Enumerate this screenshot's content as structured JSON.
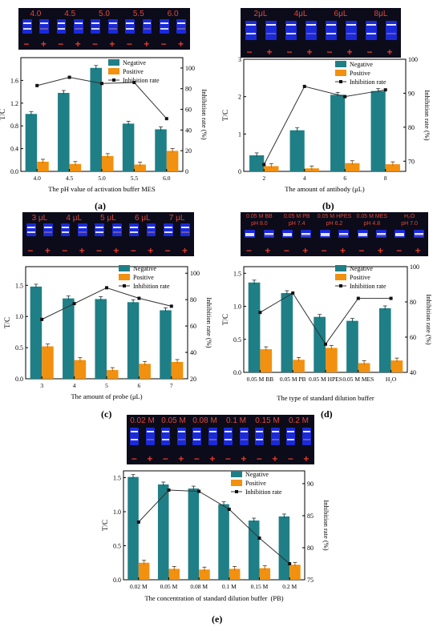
{
  "panels": [
    {
      "letter": "(a)",
      "strip_labels": [
        "4.0",
        "4.5",
        "5.0",
        "5.5",
        "6.0"
      ],
      "chart": {
        "type": "bar",
        "categories": [
          "4.0",
          "4.5",
          "5.0",
          "5.5",
          "6.0"
        ],
        "xlabel": "The pH value of activation buffer MES",
        "ylabel": "T/C",
        "ylabel2": "Inhibition rate (%)",
        "ylim": [
          0,
          2.0
        ],
        "yticks": [
          0.0,
          0.4,
          0.8,
          1.2,
          1.6
        ],
        "y2lim": [
          0,
          110
        ],
        "y2ticks": [
          0,
          20,
          40,
          60,
          80,
          100
        ],
        "series": [
          {
            "name": "Negative",
            "values": [
              1.01,
              1.38,
              1.82,
              0.84,
              0.74
            ],
            "color": "#1f7f86"
          },
          {
            "name": "Positive",
            "values": [
              0.17,
              0.13,
              0.27,
              0.12,
              0.36
            ],
            "color": "#f2900f"
          }
        ],
        "line": {
          "name": "Inhibition rate",
          "values": [
            83,
            91,
            85,
            86,
            51
          ]
        },
        "legend": "top-right"
      }
    },
    {
      "letter": "(b)",
      "strip_labels": [
        "2μL",
        "4μL",
        "6μL",
        "8μL"
      ],
      "chart": {
        "type": "bar",
        "categories": [
          "2",
          "4",
          "6",
          "8"
        ],
        "xlabel": "The amount of antibody (μL)",
        "ylabel": "T/C",
        "ylabel2": "Inhibition rate (%)",
        "ylim": [
          0,
          3.0
        ],
        "yticks": [
          0,
          1,
          2,
          3
        ],
        "y2lim": [
          67,
          100
        ],
        "y2ticks": [
          70,
          80,
          90,
          100
        ],
        "series": [
          {
            "name": "Negative",
            "values": [
              0.43,
              1.1,
              2.05,
              2.15
            ],
            "color": "#1f7f86"
          },
          {
            "name": "Positive",
            "values": [
              0.14,
              0.08,
              0.22,
              0.19
            ],
            "color": "#f2900f"
          }
        ],
        "line": {
          "name": "Inhibition rate",
          "values": [
            69,
            92,
            89,
            91
          ]
        },
        "legend": "top-right"
      }
    },
    {
      "letter": "(c)",
      "strip_labels": [
        "3 μL",
        "4 μL",
        "5 μL",
        "6 μL",
        "7 μL"
      ],
      "chart": {
        "type": "bar",
        "categories": [
          "3",
          "4",
          "5",
          "6",
          "7"
        ],
        "xlabel": "The amount of probe (μL)",
        "ylabel": "T/C",
        "ylabel2": "Inhibition rate (%)",
        "ylim": [
          0,
          1.8
        ],
        "yticks": [
          0.0,
          0.5,
          1.0,
          1.5
        ],
        "y2lim": [
          20,
          105
        ],
        "y2ticks": [
          20,
          40,
          60,
          80,
          100
        ],
        "series": [
          {
            "name": "Negative",
            "values": [
              1.48,
              1.29,
              1.28,
              1.23,
              1.1
            ],
            "color": "#1f7f86"
          },
          {
            "name": "Positive",
            "values": [
              0.52,
              0.3,
              0.14,
              0.24,
              0.27
            ],
            "color": "#f2900f"
          }
        ],
        "line": {
          "name": "Inhibition rate",
          "values": [
            65,
            77,
            89,
            81,
            75
          ]
        },
        "legend": "top-right"
      }
    },
    {
      "letter": "(d)",
      "strip_labels": [
        "0.05 M BB\npH 8.0",
        "0.05 M PB\npH 7.4",
        "0.05 M HPES\npH 6.2",
        "0.05 M MES\npH 4.8",
        "H₂O\npH 7.0"
      ],
      "chart": {
        "type": "bar",
        "categories": [
          "0.05 M BB",
          "0.05 M PB",
          "0.05 M HPES",
          "0.05 M MES",
          "H₂O"
        ],
        "xlabel": "The type of standard dilution buffer",
        "ylabel": "T/C",
        "ylabel2": "Inhibition rate (%)",
        "ylim": [
          0,
          1.6
        ],
        "yticks": [
          0.0,
          0.5,
          1.0,
          1.5
        ],
        "y2lim": [
          40,
          100
        ],
        "y2ticks": [
          40,
          60,
          80,
          100
        ],
        "series": [
          {
            "name": "Negative",
            "values": [
              1.36,
              1.2,
              0.84,
              0.78,
              0.97
            ],
            "color": "#1f7f86"
          },
          {
            "name": "Positive",
            "values": [
              0.35,
              0.19,
              0.37,
              0.14,
              0.18
            ],
            "color": "#f2900f"
          }
        ],
        "line": {
          "name": "Inhibition rate",
          "values": [
            74,
            85,
            56,
            82,
            82
          ]
        },
        "legend": "top-right"
      }
    },
    {
      "letter": "(e)",
      "strip_labels": [
        "0.02 M",
        "0.05 M",
        "0.08 M",
        "0.1 M",
        "0.15 M",
        "0.2 M"
      ],
      "chart": {
        "type": "bar",
        "categories": [
          "0.02 M",
          "0.05 M",
          "0.08 M",
          "0.1 M",
          "0.15 M",
          "0.2 M"
        ],
        "xlabel": "The concentration of standard dilution buffer",
        "xlabel_suffix": "(PB)",
        "ylabel": "T/C",
        "ylabel2": "Inhibition rate (%)",
        "ylim": [
          0,
          1.6
        ],
        "yticks": [
          0.0,
          0.5,
          1.0,
          1.5
        ],
        "y2lim": [
          75,
          92
        ],
        "y2ticks": [
          75,
          80,
          85,
          90
        ],
        "series": [
          {
            "name": "Negative",
            "values": [
              1.51,
              1.4,
              1.34,
              1.11,
              0.87,
              0.93
            ],
            "color": "#1f7f86"
          },
          {
            "name": "Positive",
            "values": [
              0.25,
              0.16,
              0.15,
              0.16,
              0.17,
              0.22
            ],
            "color": "#f2900f"
          }
        ],
        "line": {
          "name": "Inhibition rate",
          "values": [
            84,
            89,
            88.8,
            86,
            81.5,
            77.5
          ]
        },
        "legend": "top-right"
      }
    }
  ],
  "legend_labels": {
    "negative": "Negative",
    "positive": "Positive",
    "line": "Inhibition rate"
  },
  "signs": {
    "minus": "−",
    "plus": "+"
  }
}
